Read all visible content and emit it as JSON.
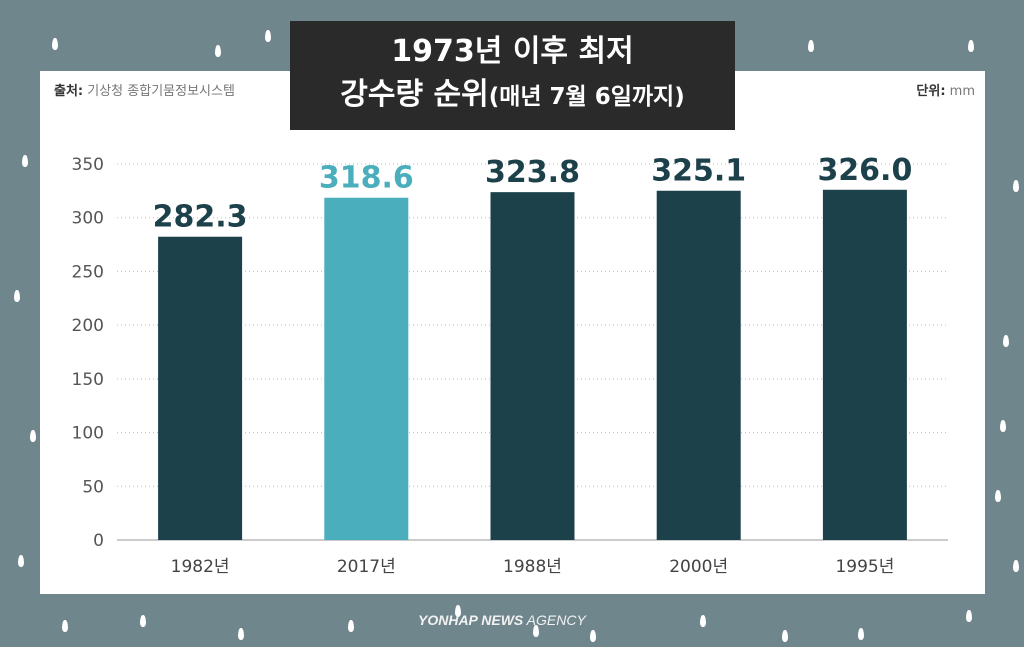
{
  "title": {
    "line1": "1973년 이후 최저",
    "line2_main": "강수량 순위",
    "line2_sub": "(매년 7월 6일까지)"
  },
  "source": {
    "label": "출처:",
    "value": "기상청 종합기뭄정보시스템"
  },
  "unit": {
    "label": "단위:",
    "value": "mm"
  },
  "logo": {
    "bold": "YONHAP NEWS",
    "light": "AGENCY"
  },
  "colors": {
    "background": "#6f868c",
    "bar": "#1d414a",
    "highlight": "#4aaebc",
    "title_box": "#2a2a2a"
  },
  "chart_data": {
    "type": "bar",
    "categories": [
      "1982년",
      "2017년",
      "1988년",
      "2000년",
      "1995년"
    ],
    "values": [
      282.3,
      318.6,
      323.8,
      325.1,
      326.0
    ],
    "value_labels": [
      "282.3",
      "318.6",
      "323.8",
      "325.1",
      "326.0"
    ],
    "highlight_index": 1,
    "ylim": [
      0,
      350
    ],
    "yticks": [
      0,
      50,
      100,
      150,
      200,
      250,
      300,
      350
    ],
    "grid": "dotted horizontal"
  }
}
